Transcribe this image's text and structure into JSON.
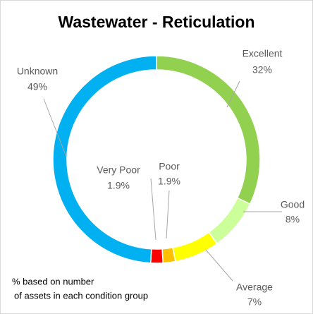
{
  "chart_data": {
    "type": "donut",
    "title": "Wastewater - Reticulation",
    "categories": [
      "Excellent",
      "Good",
      "Average",
      "Poor",
      "Very Poor",
      "Unknown"
    ],
    "values": [
      32,
      8,
      7,
      1.9,
      1.9,
      49
    ],
    "value_labels": [
      "32%",
      "8%",
      "7%",
      "1.9%",
      "1.9%",
      "49%"
    ],
    "colors": [
      "#92d050",
      "#ccff99",
      "#ffff00",
      "#ffc000",
      "#ff0000",
      "#00b0f0"
    ],
    "note": [
      "% based on number",
      "of assets in each condition group"
    ]
  }
}
